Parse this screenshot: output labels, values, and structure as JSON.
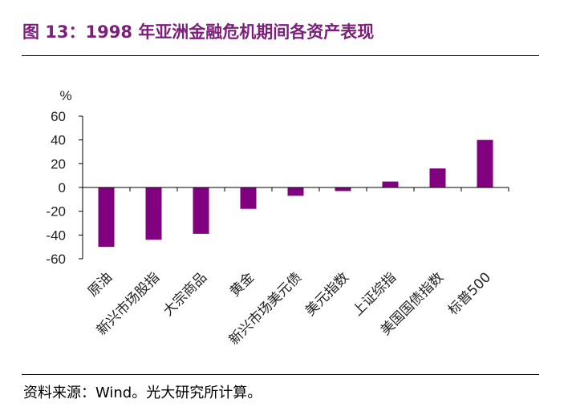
{
  "title": "图 13：1998 年亚洲金融危机期间各资产表现",
  "source": "资料来源：Wind。光大研究所计算。",
  "colors": {
    "bar": "#800080",
    "title": "#7b1f7a"
  },
  "chart_data": {
    "type": "bar",
    "title": "",
    "ylabel": "%",
    "xlabel": "",
    "ylim": [
      -60,
      60
    ],
    "yticks": [
      60,
      40,
      20,
      0,
      -20,
      -40,
      -60
    ],
    "categories": [
      "原油",
      "新兴市场股指",
      "大宗商品",
      "黄金",
      "新兴市场美元债",
      "美元指数",
      "上证综指",
      "美国国债指数",
      "标普500"
    ],
    "values": [
      -50,
      -44,
      -39,
      -18,
      -7,
      -3,
      5,
      16,
      40
    ]
  }
}
